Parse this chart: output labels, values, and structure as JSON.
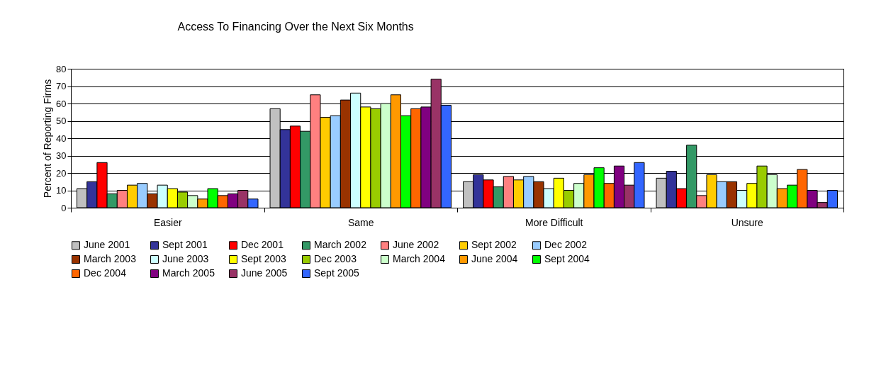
{
  "chart_data": {
    "type": "bar",
    "title": "Access To Financing Over the Next Six Months",
    "ylabel": "Percent of Reporting Firms",
    "categories": [
      "Easier",
      "Same",
      "More Difficult",
      "Unsure"
    ],
    "series": [
      {
        "name": "June 2001",
        "color": "#c0c0c0",
        "values": [
          11,
          57,
          15,
          17
        ]
      },
      {
        "name": "Sept 2001",
        "color": "#333399",
        "values": [
          15,
          45,
          19,
          21
        ]
      },
      {
        "name": "Dec 2001",
        "color": "#ff0000",
        "values": [
          26,
          47,
          16,
          11
        ]
      },
      {
        "name": "March 2002",
        "color": "#339966",
        "values": [
          8,
          44,
          12,
          36
        ]
      },
      {
        "name": "June 2002",
        "color": "#ff8080",
        "values": [
          10,
          65,
          18,
          7
        ]
      },
      {
        "name": "Sept 2002",
        "color": "#ffcc00",
        "values": [
          13,
          52,
          16,
          19
        ]
      },
      {
        "name": "Dec 2002",
        "color": "#99ccff",
        "values": [
          14,
          53,
          18,
          15
        ]
      },
      {
        "name": "March 2003",
        "color": "#993300",
        "values": [
          8,
          62,
          15,
          15
        ]
      },
      {
        "name": "June 2003",
        "color": "#ccffff",
        "values": [
          13,
          66,
          11,
          10
        ]
      },
      {
        "name": "Sept 2003",
        "color": "#ffff00",
        "values": [
          11,
          58,
          17,
          14
        ]
      },
      {
        "name": "Dec 2003",
        "color": "#99cc00",
        "values": [
          9,
          57,
          10,
          24
        ]
      },
      {
        "name": "March 2004",
        "color": "#ccffcc",
        "values": [
          7,
          60,
          14,
          19
        ]
      },
      {
        "name": "June 2004",
        "color": "#ff9900",
        "values": [
          5,
          65,
          19,
          11
        ]
      },
      {
        "name": "Sept 2004",
        "color": "#00ff00",
        "values": [
          11,
          53,
          23,
          13
        ]
      },
      {
        "name": "Dec 2004",
        "color": "#ff6600",
        "values": [
          7,
          57,
          14,
          22
        ]
      },
      {
        "name": "March 2005",
        "color": "#800080",
        "values": [
          8,
          58,
          24,
          10
        ]
      },
      {
        "name": "June 2005",
        "color": "#993366",
        "values": [
          10,
          74,
          13,
          3
        ]
      },
      {
        "name": "Sept 2005",
        "color": "#3366ff",
        "values": [
          5,
          59,
          26,
          10
        ]
      }
    ],
    "ylim": [
      0,
      80
    ],
    "yticks": [
      0,
      10,
      20,
      30,
      40,
      50,
      60,
      70,
      80
    ],
    "grid": "y",
    "legend": "bottom"
  }
}
